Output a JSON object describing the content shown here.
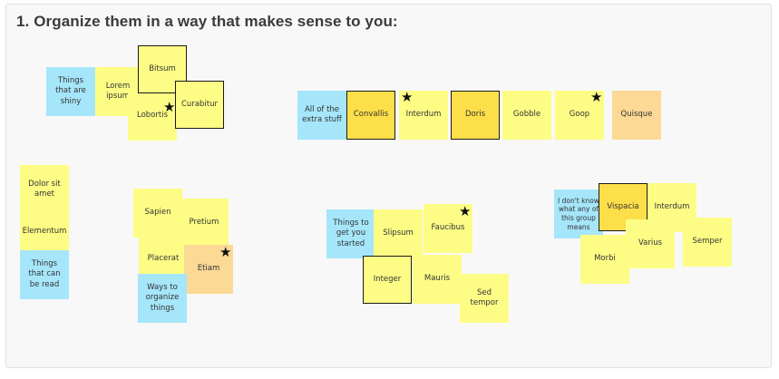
{
  "heading": "1. Organize them in a way that makes sense to you:",
  "notes": {
    "things_shiny": "Things that are shiny",
    "lorem": "Lorem ipsum",
    "bitsum": "Bitsum",
    "lobortis": "Lobortis",
    "curabitur": "Curabitur",
    "all_extra": "All of the extra stuff",
    "convallis": "Convallis",
    "interdum1": "Interdum",
    "doris": "Doris",
    "gobble": "Gobble",
    "goop": "Goop",
    "quisque": "Quisque",
    "dolor": "Dolor sit amet",
    "elementum": "Elementum",
    "things_read": "Things that can be read",
    "sapien": "Sapien",
    "pretium": "Pretium",
    "placerat": "Placerat",
    "etiam": "Etiam",
    "ways_organize": "Ways to organize things",
    "things_started": "Things to get you started",
    "slipsum": "Slipsum",
    "faucibus": "Faucibus",
    "integer": "Integer",
    "mauris": "Mauris",
    "sed_tempor": "Sed tempor",
    "dont_know": "I don't know what any of this group means",
    "vispacia": "Vispacia",
    "interdum2": "Interdum",
    "varius": "Varius",
    "semper": "Semper",
    "morbi": "Morbi"
  },
  "colors": {
    "yellow": "#fdfd86",
    "dark_yellow": "#fddf4a",
    "blue": "#a6e6fa",
    "orange": "#fcd995"
  },
  "icons": {
    "star": "star-icon"
  }
}
